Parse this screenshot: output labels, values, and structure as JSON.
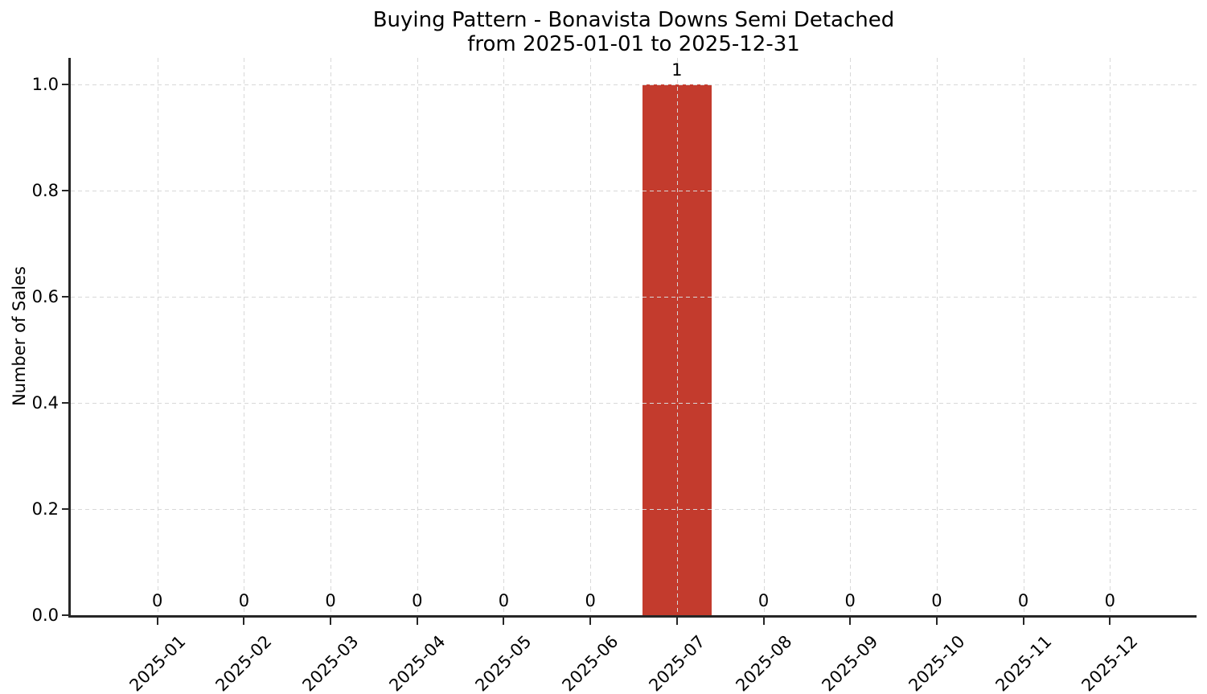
{
  "figure": {
    "title_line1": "Buying Pattern - Bonavista Downs Semi Detached",
    "title_line2": "from 2025-01-01 to 2025-12-31"
  },
  "chart_data": {
    "type": "bar",
    "title": "Buying Pattern - Bonavista Downs Semi Detached\nfrom 2025-01-01 to 2025-12-31",
    "categories": [
      "2025-01",
      "2025-02",
      "2025-03",
      "2025-04",
      "2025-05",
      "2025-06",
      "2025-07",
      "2025-08",
      "2025-09",
      "2025-10",
      "2025-11",
      "2025-12"
    ],
    "values": [
      0,
      0,
      0,
      0,
      0,
      0,
      1,
      0,
      0,
      0,
      0,
      0
    ],
    "value_labels": [
      "0",
      "0",
      "0",
      "0",
      "0",
      "0",
      "1",
      "0",
      "0",
      "0",
      "0",
      "0"
    ],
    "xlabel": "",
    "ylabel": "Number of Sales",
    "yticks": [
      0.0,
      0.2,
      0.4,
      0.6,
      0.8,
      1.0
    ],
    "ytick_labels": [
      "0.0",
      "0.2",
      "0.4",
      "0.6",
      "0.8",
      "1.0"
    ],
    "ylim": [
      0,
      1.05
    ],
    "xtick_rotation_deg": 45,
    "grid": "dashed",
    "legend": "none",
    "bar_relative_width": 0.8,
    "colors": {
      "bar": "#c33b2d",
      "grid": "#d8d8d8",
      "axis": "#262626",
      "text": "#000000",
      "background": "#ffffff"
    }
  }
}
